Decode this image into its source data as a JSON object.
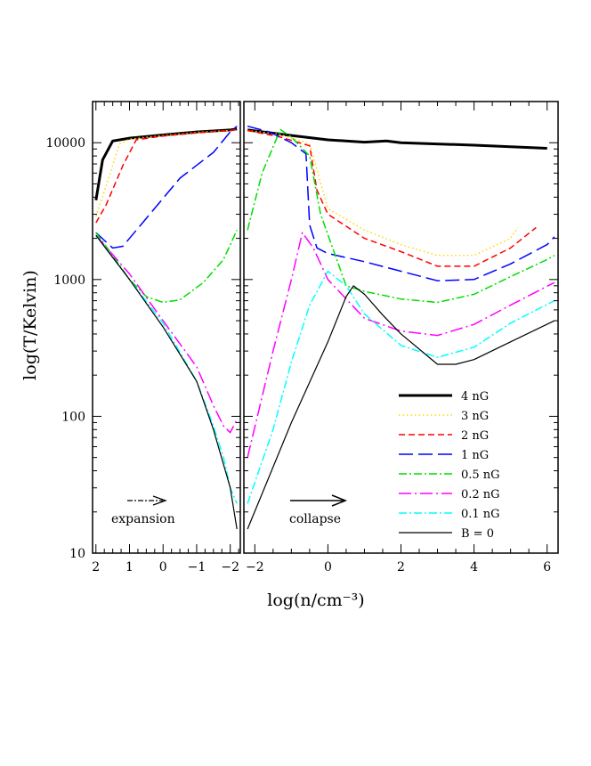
{
  "chart_data": {
    "type": "line",
    "title": "",
    "xlabel": "log(n/cm⁻³)",
    "ylabel": "log(T/Kelvin)",
    "y_scale": "log",
    "ylim": [
      10,
      20000
    ],
    "y_ticks": [
      "10",
      "100",
      "1000",
      "10000"
    ],
    "panels": [
      {
        "name": "expansion",
        "xlim": [
          2.1,
          -2.3
        ],
        "x_ticks": [
          "2",
          "1",
          "0",
          "−1",
          "−2"
        ]
      },
      {
        "name": "collapse",
        "xlim": [
          -2.3,
          6.3
        ],
        "x_ticks": [
          "−2",
          "0",
          "2",
          "4",
          "6"
        ]
      }
    ],
    "annotations": {
      "left": "expansion",
      "right": "collapse"
    },
    "legend_position": "bottom-right",
    "series": [
      {
        "name": "4 nG",
        "color": "#000000",
        "dash": "solid",
        "width": 3,
        "expansion": [
          [
            2,
            3800
          ],
          [
            1.8,
            7500
          ],
          [
            1.5,
            10300
          ],
          [
            1,
            10800
          ],
          [
            0,
            11400
          ],
          [
            -1,
            12000
          ],
          [
            -2,
            12400
          ],
          [
            -2.2,
            12600
          ]
        ],
        "collapse": [
          [
            -2.2,
            12400
          ],
          [
            -1,
            11300
          ],
          [
            0,
            10500
          ],
          [
            1,
            10100
          ],
          [
            1.6,
            10300
          ],
          [
            2,
            10000
          ],
          [
            4,
            9600
          ],
          [
            6,
            9100
          ]
        ]
      },
      {
        "name": "3 nG",
        "color": "#ffd700",
        "dash": "dotted",
        "width": 1.5,
        "expansion": [
          [
            2,
            2900
          ],
          [
            1.7,
            4800
          ],
          [
            1.3,
            9800
          ],
          [
            1,
            10600
          ],
          [
            0,
            11300
          ],
          [
            -1,
            11900
          ],
          [
            -2,
            12300
          ],
          [
            -2.2,
            12500
          ]
        ],
        "collapse": [
          [
            -2.2,
            12300
          ],
          [
            -1.3,
            11500
          ],
          [
            -0.5,
            9800
          ],
          [
            0,
            3300
          ],
          [
            1,
            2300
          ],
          [
            2,
            1800
          ],
          [
            3,
            1500
          ],
          [
            4,
            1500
          ],
          [
            5,
            2000
          ],
          [
            5.2,
            2400
          ]
        ]
      },
      {
        "name": "2 nG",
        "color": "#ff0000",
        "dash": "dashed",
        "width": 1.5,
        "expansion": [
          [
            2,
            2600
          ],
          [
            1.7,
            3500
          ],
          [
            1.2,
            6800
          ],
          [
            0.8,
            10500
          ],
          [
            0,
            11200
          ],
          [
            -1,
            11800
          ],
          [
            -2,
            12300
          ],
          [
            -2.2,
            12500
          ]
        ],
        "collapse": [
          [
            -2.2,
            12300
          ],
          [
            -1.3,
            11000
          ],
          [
            -0.5,
            9500
          ],
          [
            -0.3,
            4500
          ],
          [
            0,
            3000
          ],
          [
            1,
            2000
          ],
          [
            2,
            1600
          ],
          [
            3,
            1250
          ],
          [
            4,
            1250
          ],
          [
            5,
            1700
          ],
          [
            5.7,
            2400
          ]
        ]
      },
      {
        "name": "1 nG",
        "color": "#0000ff",
        "dash": "longdash",
        "width": 1.5,
        "expansion": [
          [
            2,
            2200
          ],
          [
            1.5,
            1700
          ],
          [
            1.2,
            1750
          ],
          [
            0.5,
            2800
          ],
          [
            -0.5,
            5500
          ],
          [
            -1.5,
            8500
          ],
          [
            -2,
            12000
          ],
          [
            -2.2,
            13200
          ]
        ],
        "collapse": [
          [
            -2.2,
            13200
          ],
          [
            -1.6,
            12000
          ],
          [
            -1,
            10000
          ],
          [
            -0.6,
            8300
          ],
          [
            -0.5,
            2500
          ],
          [
            -0.3,
            1700
          ],
          [
            0,
            1550
          ],
          [
            1,
            1350
          ],
          [
            2,
            1150
          ],
          [
            3,
            980
          ],
          [
            4,
            1000
          ],
          [
            5,
            1300
          ],
          [
            6,
            1800
          ],
          [
            6.2,
            2050
          ]
        ]
      },
      {
        "name": "0.5 nG",
        "color": "#00dd00",
        "dash": "dashdot",
        "width": 1.5,
        "expansion": [
          [
            2,
            2200
          ],
          [
            1.5,
            1500
          ],
          [
            1,
            1000
          ],
          [
            0.5,
            750
          ],
          [
            0,
            680
          ],
          [
            -0.5,
            710
          ],
          [
            -1.2,
            950
          ],
          [
            -1.8,
            1400
          ],
          [
            -2.2,
            2300
          ]
        ],
        "collapse": [
          [
            -2.2,
            2300
          ],
          [
            -1.8,
            6000
          ],
          [
            -1.3,
            12500
          ],
          [
            -1,
            11000
          ],
          [
            -0.5,
            8000
          ],
          [
            -0.2,
            3000
          ],
          [
            0.5,
            900
          ],
          [
            1,
            820
          ],
          [
            2,
            720
          ],
          [
            3,
            680
          ],
          [
            4,
            780
          ],
          [
            5,
            1050
          ],
          [
            6,
            1400
          ],
          [
            6.2,
            1500
          ]
        ]
      },
      {
        "name": "0.2 nG",
        "color": "#ff00ff",
        "dash": "longdashdot",
        "width": 1.5,
        "expansion": [
          [
            2,
            2100
          ],
          [
            1,
            1100
          ],
          [
            0,
            500
          ],
          [
            -1,
            230
          ],
          [
            -1.5,
            120
          ],
          [
            -1.8,
            85
          ],
          [
            -2,
            76
          ],
          [
            -2.2,
            95
          ]
        ],
        "collapse": [
          [
            -2.2,
            50
          ],
          [
            -1.5,
            300
          ],
          [
            -1,
            1000
          ],
          [
            -0.7,
            2200
          ],
          [
            -0.4,
            1700
          ],
          [
            0,
            1000
          ],
          [
            1,
            520
          ],
          [
            2,
            420
          ],
          [
            3,
            390
          ],
          [
            4,
            470
          ],
          [
            5,
            650
          ],
          [
            6.2,
            950
          ]
        ]
      },
      {
        "name": "0.1 nG",
        "color": "#00ffff",
        "dash": "dashdot",
        "width": 1.5,
        "expansion": [
          [
            2,
            2100
          ],
          [
            1,
            1000
          ],
          [
            0,
            480
          ],
          [
            -1,
            180
          ],
          [
            -1.5,
            85
          ],
          [
            -1.8,
            50
          ],
          [
            -2,
            30
          ],
          [
            -2.2,
            23
          ]
        ],
        "collapse": [
          [
            -2.2,
            23
          ],
          [
            -1.5,
            80
          ],
          [
            -1,
            250
          ],
          [
            -0.5,
            650
          ],
          [
            0,
            1150
          ],
          [
            0.5,
            900
          ],
          [
            1,
            560
          ],
          [
            2,
            330
          ],
          [
            3,
            270
          ],
          [
            4,
            320
          ],
          [
            5,
            480
          ],
          [
            6.2,
            700
          ]
        ]
      },
      {
        "name": "B = 0",
        "color": "#000000",
        "dash": "solid",
        "width": 1.2,
        "expansion": [
          [
            2,
            2100
          ],
          [
            1,
            1000
          ],
          [
            0,
            450
          ],
          [
            -1,
            180
          ],
          [
            -1.5,
            80
          ],
          [
            -2,
            30
          ],
          [
            -2.2,
            15
          ]
        ],
        "collapse": [
          [
            -2.2,
            15
          ],
          [
            -1,
            90
          ],
          [
            0,
            350
          ],
          [
            0.5,
            750
          ],
          [
            0.7,
            900
          ],
          [
            1,
            780
          ],
          [
            1.5,
            550
          ],
          [
            2,
            400
          ],
          [
            3,
            240
          ],
          [
            3.5,
            240
          ],
          [
            4,
            260
          ],
          [
            5,
            350
          ],
          [
            6.2,
            500
          ]
        ]
      }
    ]
  }
}
